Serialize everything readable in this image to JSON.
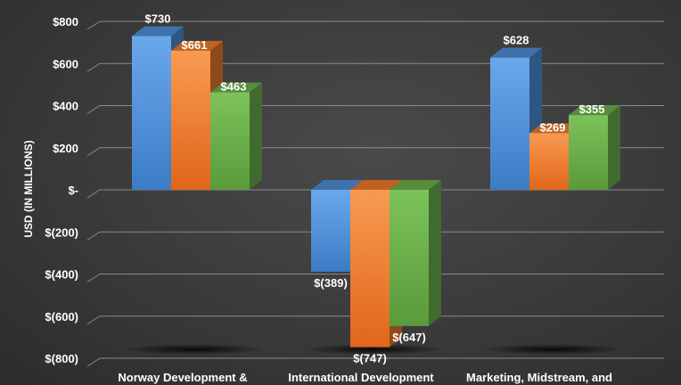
{
  "chart_data": {
    "type": "bar",
    "style": "3d-clustered-column",
    "categories": [
      "Norway Development &",
      "International Development",
      "Marketing, Midstream, and"
    ],
    "series": [
      {
        "values": [
          730,
          -389,
          628
        ]
      },
      {
        "values": [
          661,
          -747,
          269
        ]
      },
      {
        "values": [
          463,
          -647,
          355
        ]
      }
    ],
    "data_labels": [
      [
        "$730",
        "$(389)",
        "$628"
      ],
      [
        "$661",
        "$(747)",
        "$269"
      ],
      [
        "$463",
        "$(647)",
        "$355"
      ]
    ],
    "title": "",
    "xlabel": "",
    "ylabel": "USD (IN MILLIONS)",
    "ylim": [
      -800,
      800
    ],
    "yticks": [
      800,
      600,
      400,
      200,
      0,
      -200,
      -400,
      -600,
      -800
    ],
    "ytick_labels": [
      "$800",
      "$600",
      "$400",
      "$200",
      "$-",
      "$(200)",
      "$(400)",
      "$(600)",
      "$(800)"
    ],
    "grid": true,
    "legend": "none",
    "colors": {
      "series": [
        "#4f8fd8",
        "#f07a2a",
        "#6ab04c"
      ],
      "grid": "#8a8a8a",
      "text": "#ffffff"
    }
  }
}
